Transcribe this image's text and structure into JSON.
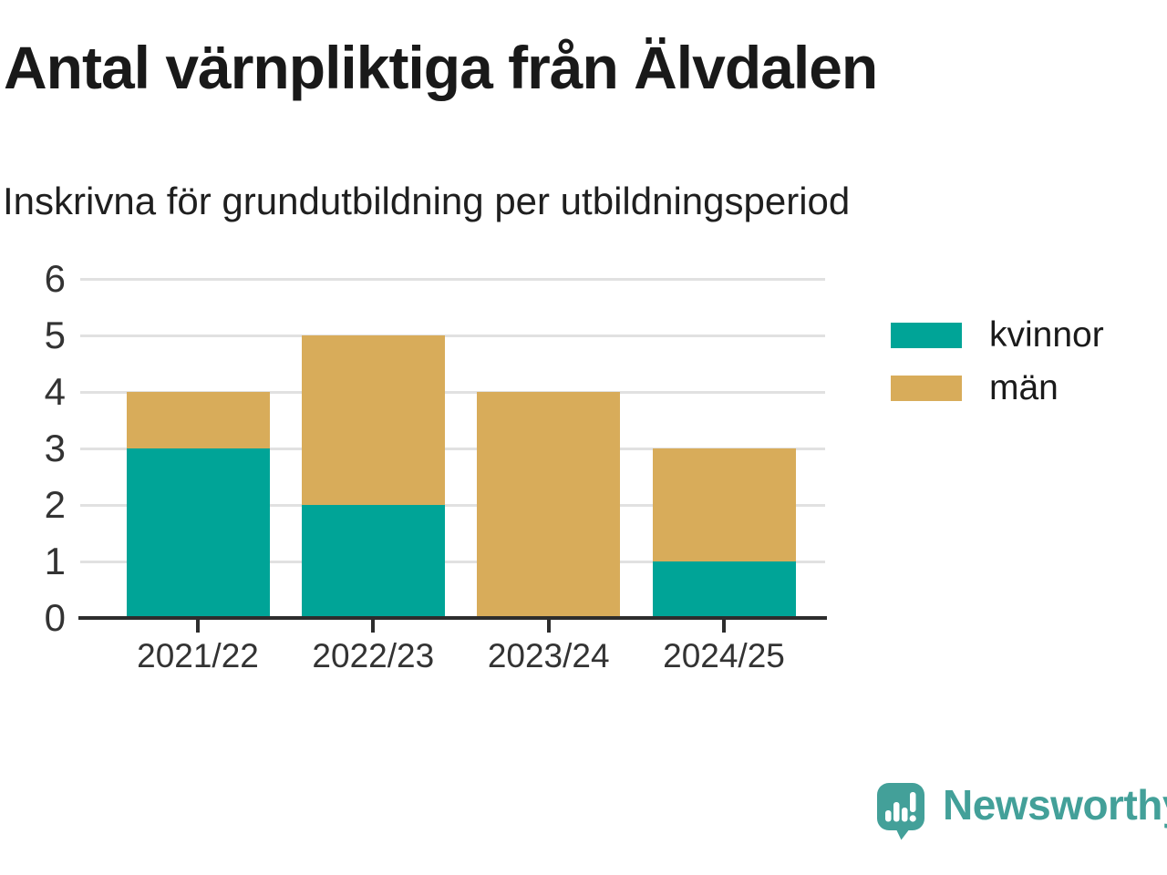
{
  "title": "Antal värnpliktiga från Älvdalen",
  "subtitle": "Inskrivna för grundutbildning per utbildningsperiod",
  "chart_data": {
    "type": "bar",
    "stacked": true,
    "title": "Antal värnpliktiga från Älvdalen",
    "subtitle": "Inskrivna för grundutbildning per utbildningsperiod",
    "categories": [
      "2021/22",
      "2022/23",
      "2023/24",
      "2024/25"
    ],
    "series": [
      {
        "name": "kvinnor",
        "color": "#00a497",
        "values": [
          3,
          2,
          0,
          1
        ]
      },
      {
        "name": "män",
        "color": "#d8ac5a",
        "values": [
          1,
          3,
          4,
          2
        ]
      }
    ],
    "totals": [
      4,
      5,
      4,
      3
    ],
    "ylim": [
      0,
      6
    ],
    "yticks": [
      0,
      1,
      2,
      3,
      4,
      5,
      6
    ],
    "xlabel": "",
    "ylabel": "",
    "grid": true,
    "legend_position": "right"
  },
  "legend": {
    "items": [
      {
        "label": "kvinnor",
        "color": "#00a497"
      },
      {
        "label": "män",
        "color": "#d8ac5a"
      }
    ]
  },
  "footer": {
    "brand": "Newsworthy"
  },
  "colors": {
    "kvinnor": "#00a497",
    "man": "#d8ac5a",
    "grid": "#e1e1e1",
    "axis": "#2d2d2d",
    "title_text": "#191919",
    "tick_text": "#333333",
    "brand_teal": "#43a099"
  }
}
